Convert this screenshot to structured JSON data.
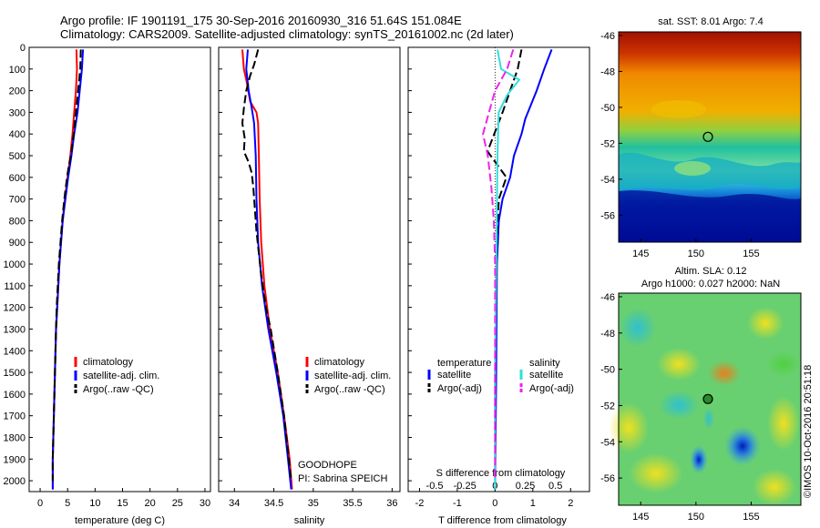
{
  "header": {
    "line1": "Argo profile: IF 1901191_175 30-Sep-2016 20160930_316 51.64S 151.084E",
    "line2": "Climatology: CARS2009. Satellite-adjusted climatology: synTS_20161002.nc (2d later)"
  },
  "colors": {
    "climatology": "#ff0000",
    "satellite": "#0000ff",
    "argo": "#000000",
    "satellite_s": "#33dddd",
    "argo_s": "#ee22ee"
  },
  "depth_ticks": [
    0,
    100,
    200,
    300,
    400,
    500,
    600,
    700,
    800,
    900,
    1000,
    1100,
    1200,
    1300,
    1400,
    1500,
    1600,
    1700,
    1800,
    1900,
    2000
  ],
  "chart_data": [
    {
      "type": "line",
      "xlabel": "temperature (deg C)",
      "xticks": [
        0,
        5,
        10,
        15,
        20,
        25,
        30
      ],
      "xlim": [
        -2,
        31
      ],
      "ylim": [
        2050,
        0
      ],
      "legend": [
        "climatology",
        "satellite-adj. clim.",
        "Argo(..raw -QC)"
      ],
      "series": [
        {
          "name": "climatology",
          "points": [
            [
              6.6,
              10
            ],
            [
              6.7,
              100
            ],
            [
              6.5,
              200
            ],
            [
              6.2,
              300
            ],
            [
              5.9,
              400
            ],
            [
              5.5,
              500
            ],
            [
              5.0,
              600
            ],
            [
              4.5,
              700
            ],
            [
              4.1,
              800
            ],
            [
              3.8,
              900
            ],
            [
              3.5,
              1000
            ],
            [
              3.3,
              1100
            ],
            [
              3.1,
              1200
            ],
            [
              2.9,
              1300
            ],
            [
              2.8,
              1400
            ],
            [
              2.7,
              1500
            ],
            [
              2.6,
              1600
            ],
            [
              2.5,
              1700
            ],
            [
              2.4,
              1800
            ],
            [
              2.3,
              1900
            ],
            [
              2.3,
              2040
            ]
          ]
        },
        {
          "name": "satellite-adj. clim.",
          "points": [
            [
              7.8,
              10
            ],
            [
              7.6,
              100
            ],
            [
              7.2,
              200
            ],
            [
              6.8,
              300
            ],
            [
              6.2,
              400
            ],
            [
              5.7,
              500
            ],
            [
              5.1,
              600
            ],
            [
              4.6,
              700
            ],
            [
              4.1,
              800
            ],
            [
              3.8,
              900
            ],
            [
              3.5,
              1000
            ],
            [
              3.3,
              1100
            ],
            [
              3.1,
              1200
            ],
            [
              2.9,
              1300
            ],
            [
              2.8,
              1400
            ],
            [
              2.7,
              1500
            ],
            [
              2.6,
              1600
            ],
            [
              2.5,
              1700
            ],
            [
              2.4,
              1800
            ],
            [
              2.3,
              1900
            ],
            [
              2.3,
              2040
            ]
          ]
        },
        {
          "name": "Argo(..raw -QC)",
          "points": [
            [
              7.4,
              10
            ],
            [
              7.3,
              100
            ],
            [
              6.9,
              200
            ],
            [
              6.5,
              300
            ],
            [
              6.1,
              400
            ],
            [
              5.6,
              500
            ],
            [
              5.2,
              550
            ],
            [
              4.9,
              600
            ],
            [
              4.4,
              700
            ],
            [
              4.0,
              800
            ],
            [
              3.7,
              900
            ],
            [
              3.4,
              1000
            ],
            [
              3.2,
              1100
            ],
            [
              3.0,
              1200
            ],
            [
              2.9,
              1300
            ],
            [
              2.8,
              1400
            ],
            [
              2.7,
              1500
            ],
            [
              2.6,
              1600
            ],
            [
              2.5,
              1700
            ],
            [
              2.4,
              1800
            ],
            [
              2.3,
              1900
            ],
            [
              2.3,
              2000
            ]
          ]
        }
      ]
    },
    {
      "type": "line",
      "xlabel": "salinity",
      "xticks": [
        34,
        34.5,
        35,
        35.5,
        36
      ],
      "xtick_labels": [
        "34",
        "34.5",
        "35",
        "35.5",
        "36"
      ],
      "xlim": [
        33.8,
        36.1
      ],
      "ylim": [
        2050,
        0
      ],
      "legend": [
        "climatology",
        "satellite-adj. clim.",
        "Argo(..raw -QC)"
      ],
      "annotation": [
        "GOODHOPE",
        "PI: Sabrina SPEICH"
      ],
      "series": [
        {
          "name": "climatology",
          "points": [
            [
              34.1,
              10
            ],
            [
              34.12,
              100
            ],
            [
              34.15,
              150
            ],
            [
              34.2,
              250
            ],
            [
              34.28,
              300
            ],
            [
              34.3,
              350
            ],
            [
              34.31,
              500
            ],
            [
              34.32,
              700
            ],
            [
              34.34,
              900
            ],
            [
              34.38,
              1100
            ],
            [
              34.45,
              1300
            ],
            [
              34.55,
              1500
            ],
            [
              34.63,
              1700
            ],
            [
              34.7,
              1900
            ],
            [
              34.73,
              2040
            ]
          ]
        },
        {
          "name": "satellite-adj. clim.",
          "points": [
            [
              34.17,
              10
            ],
            [
              34.15,
              100
            ],
            [
              34.18,
              200
            ],
            [
              34.22,
              280
            ],
            [
              34.25,
              350
            ],
            [
              34.27,
              500
            ],
            [
              34.28,
              700
            ],
            [
              34.3,
              900
            ],
            [
              34.35,
              1100
            ],
            [
              34.43,
              1300
            ],
            [
              34.53,
              1500
            ],
            [
              34.62,
              1700
            ],
            [
              34.68,
              1900
            ],
            [
              34.72,
              2040
            ]
          ]
        },
        {
          "name": "Argo(..raw -QC)",
          "points": [
            [
              34.3,
              10
            ],
            [
              34.25,
              80
            ],
            [
              34.2,
              130
            ],
            [
              34.15,
              200
            ],
            [
              34.12,
              280
            ],
            [
              34.1,
              350
            ],
            [
              34.13,
              420
            ],
            [
              34.12,
              480
            ],
            [
              34.18,
              530
            ],
            [
              34.22,
              580
            ],
            [
              34.24,
              650
            ],
            [
              34.26,
              750
            ],
            [
              34.28,
              850
            ],
            [
              34.31,
              950
            ],
            [
              34.34,
              1050
            ],
            [
              34.4,
              1200
            ],
            [
              34.46,
              1300
            ],
            [
              34.55,
              1500
            ],
            [
              34.63,
              1700
            ],
            [
              34.69,
              1900
            ],
            [
              34.72,
              2000
            ]
          ]
        }
      ]
    },
    {
      "type": "line",
      "xlabel": "T difference from climatology",
      "xlabel_top": "S difference from climatology",
      "xticks": [
        -2,
        -1,
        0,
        1,
        2
      ],
      "top_ticks": [
        -0.5,
        -0.25,
        0,
        0.25,
        0.5
      ],
      "top_tick_labels": [
        "-0.5",
        "-0.25",
        "0",
        "0.25",
        "0.5"
      ],
      "xlim": [
        -2.3,
        2.5
      ],
      "ylim": [
        2050,
        0
      ],
      "legend_headers": [
        "temperature",
        "salinity"
      ],
      "legend": [
        "satellite",
        "Argo(-adj)",
        "satellite",
        "Argo(-adj)"
      ],
      "series": [
        {
          "name": "satellite",
          "quantity": "T",
          "points": [
            [
              1.5,
              10
            ],
            [
              1.3,
              100
            ],
            [
              1.1,
              200
            ],
            [
              0.8,
              330
            ],
            [
              0.7,
              400
            ],
            [
              0.5,
              500
            ],
            [
              0.4,
              600
            ],
            [
              0.2,
              700
            ],
            [
              0.1,
              800
            ],
            [
              0.05,
              1000
            ],
            [
              0.03,
              1500
            ],
            [
              0.0,
              2040
            ]
          ]
        },
        {
          "name": "Argo(-adj)",
          "quantity": "T",
          "points": [
            [
              0.7,
              10
            ],
            [
              0.6,
              100
            ],
            [
              0.2,
              300
            ],
            [
              -0.2,
              480
            ],
            [
              0.3,
              600
            ],
            [
              0.1,
              700
            ],
            [
              0.05,
              900
            ],
            [
              0.0,
              1500
            ],
            [
              0.0,
              2000
            ]
          ]
        },
        {
          "name": "satellite",
          "quantity": "S",
          "points": [
            [
              0.02,
              10
            ],
            [
              0.05,
              100
            ],
            [
              0.2,
              150
            ],
            [
              0.1,
              220
            ],
            [
              0.03,
              300
            ],
            [
              0.02,
              500
            ],
            [
              0.01,
              1000
            ],
            [
              0.0,
              1500
            ],
            [
              0.0,
              2040
            ]
          ]
        },
        {
          "name": "Argo(-adj)",
          "quantity": "S",
          "points": [
            [
              0.15,
              10
            ],
            [
              0.1,
              100
            ],
            [
              0.0,
              200
            ],
            [
              -0.05,
              300
            ],
            [
              -0.1,
              400
            ],
            [
              -0.06,
              500
            ],
            [
              -0.03,
              650
            ],
            [
              -0.01,
              800
            ],
            [
              0.0,
              1000
            ],
            [
              0.0,
              2000
            ]
          ]
        }
      ]
    },
    {
      "type": "heatmap",
      "title": "sat. SST: 8.01  Argo: 7.4",
      "xticks": [
        145,
        150,
        155
      ],
      "yticks": [
        -46,
        -48,
        -50,
        -52,
        -54,
        -56
      ],
      "xlim": [
        143,
        159.5
      ],
      "ylim": [
        -57.5,
        -45.8
      ],
      "marker": [
        151.084,
        -51.64
      ]
    },
    {
      "type": "heatmap",
      "title_lines": [
        "Altim. SLA: 0.12",
        "Argo h1000: 0.027 h2000: NaN"
      ],
      "xticks": [
        145,
        150,
        155
      ],
      "yticks": [
        -46,
        -48,
        -50,
        -52,
        -54,
        -56
      ],
      "xlim": [
        143,
        159.5
      ],
      "ylim": [
        -57.5,
        -45.8
      ],
      "marker": [
        151.084,
        -51.64
      ]
    }
  ],
  "credit": "©IMOS 10-Oct-2016 20:51:18"
}
